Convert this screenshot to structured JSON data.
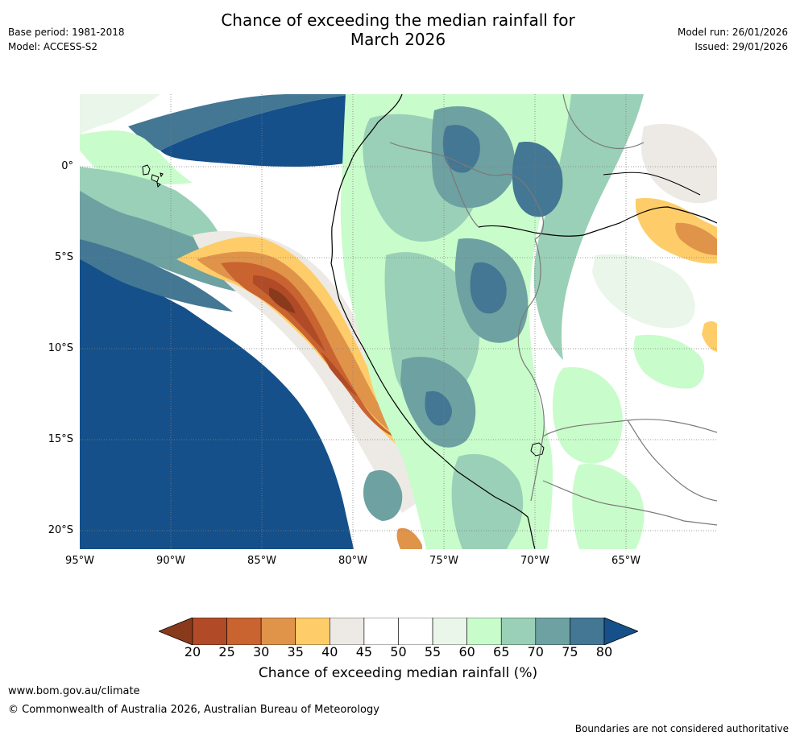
{
  "header": {
    "base_period": "Base period: 1981-2018",
    "model": "Model: ACCESS-S2",
    "title_line1": "Chance of exceeding the median rainfall for",
    "title_line2": "March 2026",
    "model_run": "Model run: 26/01/2026",
    "issued": "Issued: 29/01/2026"
  },
  "map": {
    "region": "Western South America (Ecuador, Peru, Bolivia) and eastern Pacific",
    "lat_labels": [
      "0°",
      "5°S",
      "10°S",
      "15°S",
      "20°S"
    ],
    "lon_labels": [
      "95°W",
      "90°W",
      "85°W",
      "80°W",
      "75°W",
      "70°W",
      "65°W"
    ]
  },
  "colorbar": {
    "title": "Chance of exceeding median rainfall (%)",
    "labels": [
      "20",
      "25",
      "30",
      "35",
      "40",
      "45",
      "50",
      "55",
      "60",
      "65",
      "70",
      "75",
      "80"
    ],
    "colors": [
      "#8a3a1c",
      "#b14a27",
      "#c96330",
      "#e0944a",
      "#fecd6a",
      "#edeae5",
      "#ffffff",
      "#ffffff",
      "#e9f6e9",
      "#c9fccb",
      "#9ad0b7",
      "#6ea1a1",
      "#437793",
      "#15508a"
    ]
  },
  "footer": {
    "url": "www.bom.gov.au/climate",
    "copyright": "© Commonwealth of Australia 2026, Australian Bureau of Meteorology",
    "note": "Boundaries are not considered authoritative"
  }
}
